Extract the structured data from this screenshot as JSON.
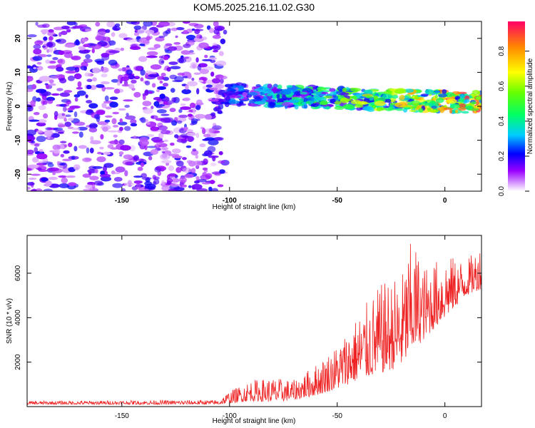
{
  "title": "KOM5.2025.216.11.02.G30",
  "chart_data": [
    {
      "type": "heatmap",
      "xlabel": "Height of straight line (km)",
      "ylabel": "Frequency (Hz)",
      "xlim": [
        -194,
        17
      ],
      "ylim": [
        -25,
        25
      ],
      "xticks": [
        "-150",
        "-100",
        "-50",
        "0"
      ],
      "yticks": [
        "-20",
        "-10",
        "0",
        "10",
        "20"
      ],
      "colorbar": {
        "label": "Normalized spectral amplitude",
        "ticks": [
          "0.0",
          "0.2",
          "0.4",
          "0.6",
          "0.8"
        ],
        "range": [
          0,
          0.97
        ]
      },
      "regions": [
        {
          "name": "noise",
          "x": [
            -194,
            -102
          ],
          "y": [
            -25,
            25
          ],
          "amplitude": 0.12
        },
        {
          "name": "signal",
          "x": [
            -102,
            17
          ],
          "freq_start": 3.5,
          "freq_end": 1.0,
          "amplitude_start": 0.25,
          "amplitude_end": 0.9
        }
      ],
      "grid": false
    },
    {
      "type": "line",
      "xlabel": "Height of straight line (km)",
      "ylabel": "SNR (10 * v/v)",
      "xlim": [
        -194,
        17
      ],
      "ylim": [
        0,
        7700
      ],
      "xticks": [
        "-150",
        "-100",
        "-50",
        "0"
      ],
      "yticks": [
        "2000",
        "4000",
        "6000"
      ],
      "color": "#ee2222",
      "envelope": {
        "x": [
          -194,
          -105,
          -100,
          -90,
          -80,
          -70,
          -60,
          -50,
          -40,
          -30,
          -20,
          -15,
          -10,
          0,
          10,
          17
        ],
        "base": [
          100,
          100,
          150,
          250,
          200,
          300,
          500,
          800,
          1200,
          1500,
          1800,
          2500,
          3000,
          4000,
          5000,
          5300
        ],
        "peak": [
          250,
          300,
          700,
          1200,
          1300,
          1200,
          1900,
          2800,
          4200,
          5500,
          6000,
          7700,
          6300,
          6800,
          6600,
          7300
        ]
      }
    }
  ]
}
